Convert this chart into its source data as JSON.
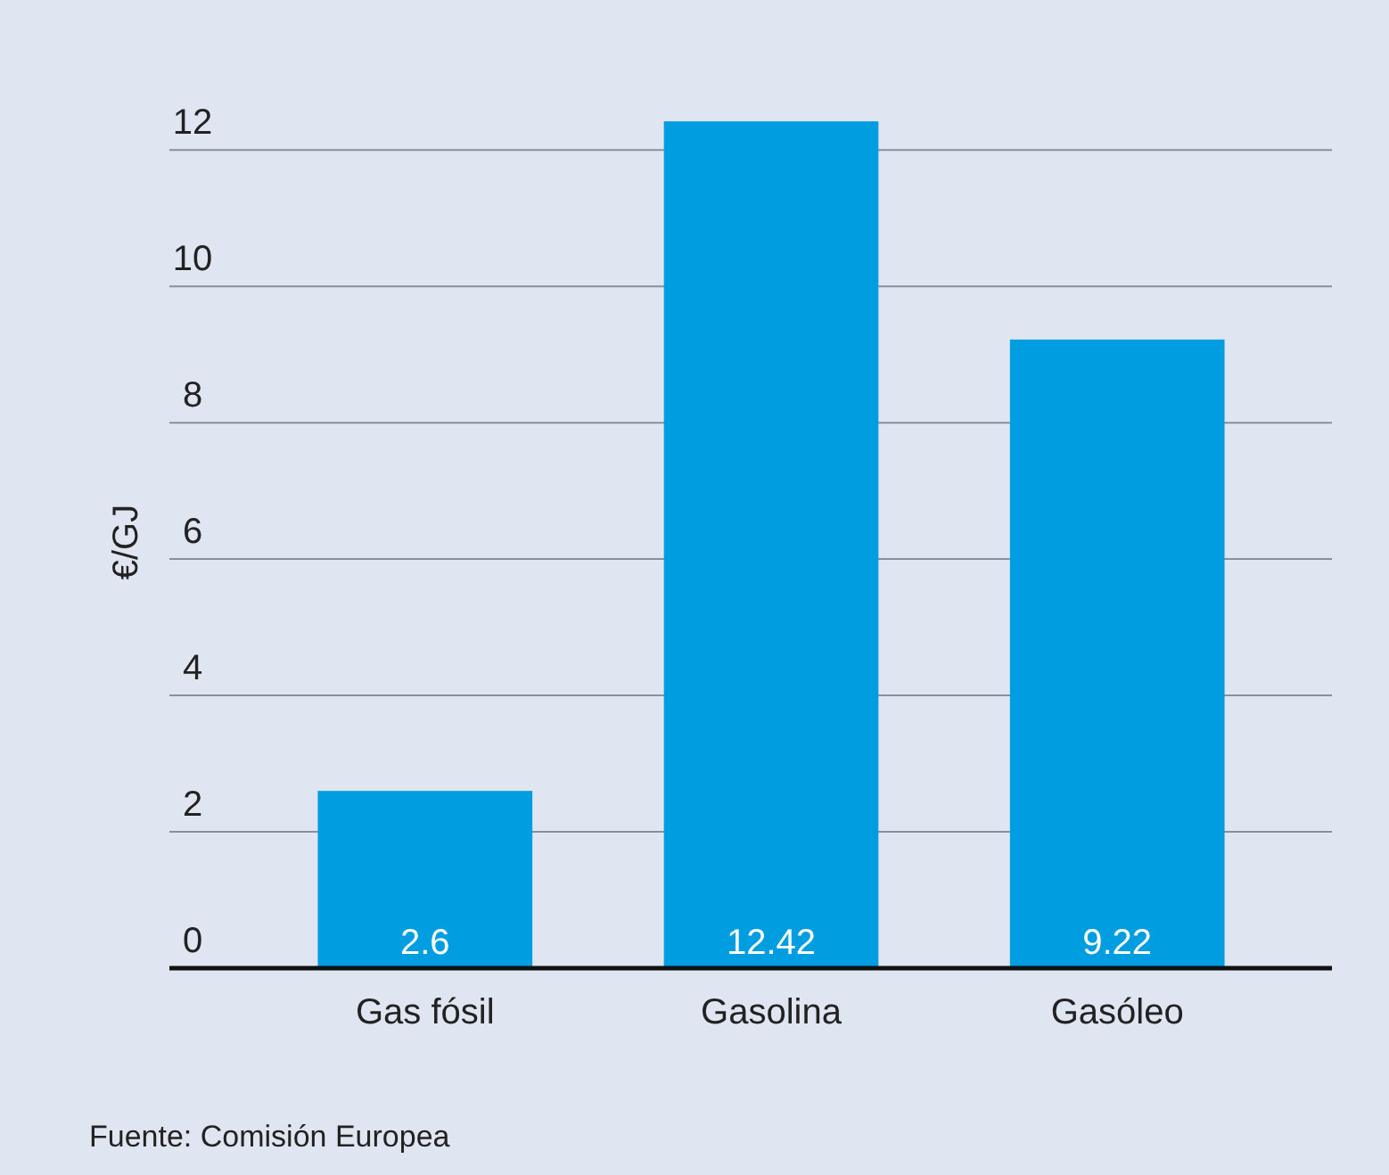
{
  "chart_data": {
    "type": "bar",
    "ylabel": "€/GJ",
    "categories": [
      "Gas fósil",
      "Gasolina",
      "Gasóleo"
    ],
    "values": [
      2.6,
      12.42,
      9.22
    ],
    "color": "#009ee0",
    "ylim": [
      0,
      12.5
    ],
    "yticks": [
      0,
      2,
      4,
      6,
      8,
      10,
      12
    ],
    "grid": "y",
    "data_labels": true,
    "annotations": [
      "Fuente: Comisión Europea"
    ]
  }
}
